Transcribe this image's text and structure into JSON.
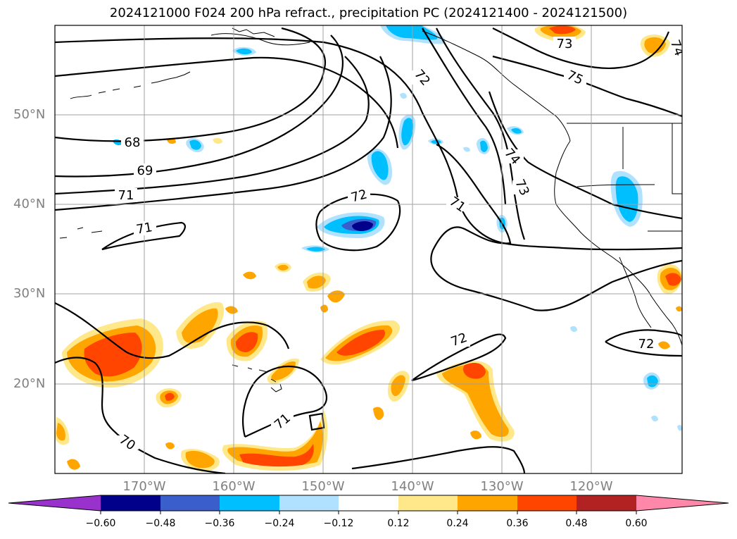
{
  "title": "2024121000 F024 200 hPa refract., precipitation PC (2024121400 - 2024121500)",
  "lat_labels": [
    "50°N",
    "40°N",
    "30°N",
    "20°N"
  ],
  "lon_labels": [
    "170°W",
    "160°W",
    "150°W",
    "140°W",
    "130°W",
    "120°W"
  ],
  "contour_labels": [
    "68",
    "69",
    "71",
    "71",
    "72",
    "71",
    "72",
    "73",
    "74",
    "75",
    "73",
    "74",
    "70",
    "71",
    "72",
    "72"
  ],
  "colorbar": {
    "ticks": [
      "−0.60",
      "−0.48",
      "−0.36",
      "−0.24",
      "−0.12",
      "0.12",
      "0.24",
      "0.36",
      "0.48",
      "0.60"
    ],
    "colors": [
      "#9932cc",
      "#00008b",
      "#3a5fcd",
      "#00bfff",
      "#b0e2ff",
      "#ffffff",
      "#ffe88a",
      "#ffa500",
      "#ff4500",
      "#b22222",
      "#ff88aa"
    ]
  },
  "colors": {
    "blue_light": "#b0e2ff",
    "blue": "#00bfff",
    "blue_mid": "#3a5fcd",
    "blue_dark": "#00008b",
    "yellow": "#ffe88a",
    "orange": "#ffa500",
    "red_orange": "#ff4500"
  }
}
